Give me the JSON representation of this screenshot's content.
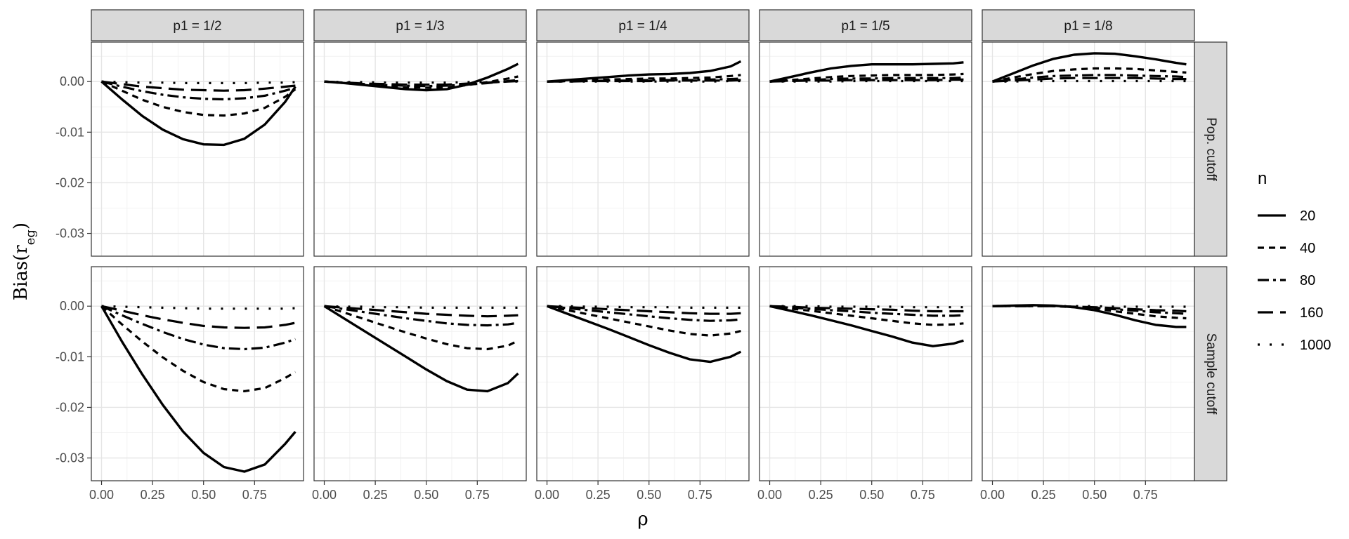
{
  "chart_data": {
    "type": "line",
    "xlabel": "ρ",
    "ylabel": "Bias(r",
    "ylabel_sub": "eg",
    "ylabel_close": ")",
    "x_ticks": [
      0.0,
      0.25,
      0.5,
      0.75
    ],
    "x_tick_labels": [
      "0.00",
      "0.25",
      "0.50",
      "0.75"
    ],
    "xlim": [
      -0.05,
      0.99
    ],
    "y_ticks": [
      0.0,
      -0.01,
      -0.02,
      -0.03
    ],
    "y_tick_labels": [
      "0.00",
      "-0.01",
      "-0.02",
      "-0.03"
    ],
    "ylim": [
      -0.0345,
      0.0078
    ],
    "grid": true,
    "legend": {
      "title": "n",
      "position": "right",
      "entries": [
        "20",
        "40",
        "80",
        "160",
        "1000"
      ]
    },
    "columns": [
      "p1 = 1/2",
      "p1 = 1/3",
      "p1 = 1/4",
      "p1 = 1/5",
      "p1 = 1/8"
    ],
    "rows": [
      "Pop. cutoff",
      "Sample cutoff"
    ],
    "x": [
      0.0,
      0.1,
      0.2,
      0.3,
      0.4,
      0.5,
      0.6,
      0.7,
      0.8,
      0.9,
      0.95
    ],
    "panels": [
      [
        {
          "series": [
            {
              "n": "20",
              "values": [
                0.0,
                -0.0035,
                -0.0068,
                -0.0095,
                -0.0114,
                -0.0124,
                -0.0125,
                -0.0113,
                -0.0085,
                -0.004,
                -0.001
              ]
            },
            {
              "n": "40",
              "values": [
                0.0,
                -0.0018,
                -0.0036,
                -0.005,
                -0.006,
                -0.0066,
                -0.0067,
                -0.0063,
                -0.0052,
                -0.003,
                -0.0015
              ]
            },
            {
              "n": "80",
              "values": [
                0.0,
                -0.001,
                -0.0019,
                -0.0026,
                -0.0031,
                -0.0034,
                -0.0035,
                -0.0033,
                -0.0028,
                -0.0018,
                -0.0012
              ]
            },
            {
              "n": "160",
              "values": [
                0.0,
                -0.0005,
                -0.001,
                -0.0013,
                -0.0016,
                -0.0017,
                -0.0018,
                -0.0017,
                -0.0014,
                -0.001,
                -0.0008
              ]
            },
            {
              "n": "1000",
              "values": [
                0.0,
                -0.0001,
                -0.0002,
                -0.0002,
                -0.0003,
                -0.0003,
                -0.0003,
                -0.0003,
                -0.0002,
                -0.0002,
                -0.0001
              ]
            }
          ]
        },
        {
          "series": [
            {
              "n": "20",
              "values": [
                0.0,
                -0.0003,
                -0.0007,
                -0.0011,
                -0.0015,
                -0.0017,
                -0.0015,
                -0.0006,
                0.0008,
                0.0025,
                0.0035
              ]
            },
            {
              "n": "40",
              "values": [
                0.0,
                -0.0003,
                -0.0006,
                -0.0009,
                -0.0011,
                -0.0012,
                -0.0011,
                -0.0007,
                -0.0001,
                0.0006,
                0.001
              ]
            },
            {
              "n": "80",
              "values": [
                0.0,
                -0.0002,
                -0.0005,
                -0.0007,
                -0.0008,
                -0.0009,
                -0.0008,
                -0.0006,
                -0.0003,
                0.0001,
                0.0003
              ]
            },
            {
              "n": "160",
              "values": [
                0.0,
                -0.0002,
                -0.0004,
                -0.0005,
                -0.0006,
                -0.0006,
                -0.0006,
                -0.0004,
                -0.0002,
                0.0,
                0.0001
              ]
            },
            {
              "n": "1000",
              "values": [
                0.0,
                -0.0001,
                -0.0001,
                -0.0002,
                -0.0002,
                -0.0002,
                -0.0002,
                -0.0001,
                -0.0001,
                0.0,
                0.0
              ]
            }
          ]
        },
        {
          "series": [
            {
              "n": "20",
              "values": [
                0.0,
                0.0003,
                0.0006,
                0.0009,
                0.0012,
                0.0014,
                0.0015,
                0.0017,
                0.0021,
                0.003,
                0.004
              ]
            },
            {
              "n": "40",
              "values": [
                0.0,
                0.0001,
                0.0003,
                0.0004,
                0.0005,
                0.0006,
                0.0006,
                0.0007,
                0.0008,
                0.0011,
                0.0013
              ]
            },
            {
              "n": "80",
              "values": [
                0.0,
                0.0001,
                0.0001,
                0.0002,
                0.0002,
                0.0003,
                0.0003,
                0.0003,
                0.0004,
                0.0005,
                0.0006
              ]
            },
            {
              "n": "160",
              "values": [
                0.0,
                0.0,
                0.0001,
                0.0001,
                0.0001,
                0.0001,
                0.0002,
                0.0002,
                0.0002,
                0.0002,
                0.0003
              ]
            },
            {
              "n": "1000",
              "values": [
                0.0,
                0.0,
                0.0,
                0.0,
                0.0,
                0.0,
                0.0,
                0.0,
                0.0,
                0.0001,
                0.0001
              ]
            }
          ]
        },
        {
          "series": [
            {
              "n": "20",
              "values": [
                0.0,
                0.0009,
                0.0018,
                0.0026,
                0.0031,
                0.0034,
                0.0034,
                0.0034,
                0.0035,
                0.0036,
                0.0038
              ]
            },
            {
              "n": "40",
              "values": [
                0.0,
                0.0003,
                0.0006,
                0.0009,
                0.0011,
                0.0012,
                0.0013,
                0.0013,
                0.0013,
                0.0014,
                0.0015
              ]
            },
            {
              "n": "80",
              "values": [
                0.0,
                0.0002,
                0.0003,
                0.0005,
                0.0006,
                0.0006,
                0.0007,
                0.0007,
                0.0007,
                0.0007,
                0.0008
              ]
            },
            {
              "n": "160",
              "values": [
                0.0,
                0.0001,
                0.0002,
                0.0002,
                0.0003,
                0.0003,
                0.0003,
                0.0003,
                0.0003,
                0.0004,
                0.0004
              ]
            },
            {
              "n": "1000",
              "values": [
                0.0,
                0.0,
                0.0,
                0.0,
                0.0001,
                0.0001,
                0.0001,
                0.0001,
                0.0001,
                0.0001,
                0.0001
              ]
            }
          ]
        },
        {
          "series": [
            {
              "n": "20",
              "values": [
                0.0,
                0.0016,
                0.0032,
                0.0045,
                0.0053,
                0.0056,
                0.0055,
                0.005,
                0.0044,
                0.0037,
                0.0034
              ]
            },
            {
              "n": "40",
              "values": [
                0.0,
                0.0008,
                0.0015,
                0.0021,
                0.0024,
                0.0026,
                0.0026,
                0.0025,
                0.0022,
                0.0019,
                0.0018
              ]
            },
            {
              "n": "80",
              "values": [
                0.0,
                0.0004,
                0.0008,
                0.0011,
                0.0012,
                0.0013,
                0.0013,
                0.0012,
                0.0011,
                0.001,
                0.0009
              ]
            },
            {
              "n": "160",
              "values": [
                0.0,
                0.0002,
                0.0004,
                0.0006,
                0.0007,
                0.0007,
                0.0007,
                0.0007,
                0.0006,
                0.0005,
                0.0005
              ]
            },
            {
              "n": "1000",
              "values": [
                0.0,
                0.0,
                0.0001,
                0.0001,
                0.0001,
                0.0001,
                0.0001,
                0.0001,
                0.0001,
                0.0001,
                0.0001
              ]
            }
          ]
        }
      ],
      [
        {
          "series": [
            {
              "n": "20",
              "values": [
                0.0,
                -0.007,
                -0.0135,
                -0.0195,
                -0.0248,
                -0.029,
                -0.0318,
                -0.0327,
                -0.0313,
                -0.0272,
                -0.0248
              ]
            },
            {
              "n": "40",
              "values": [
                0.0,
                -0.0036,
                -0.007,
                -0.0101,
                -0.0128,
                -0.015,
                -0.0164,
                -0.0168,
                -0.0162,
                -0.0142,
                -0.013
              ]
            },
            {
              "n": "80",
              "values": [
                0.0,
                -0.0018,
                -0.0035,
                -0.0051,
                -0.0065,
                -0.0076,
                -0.0083,
                -0.0085,
                -0.0082,
                -0.0072,
                -0.0065
              ]
            },
            {
              "n": "160",
              "values": [
                0.0,
                -0.0009,
                -0.0018,
                -0.0026,
                -0.0033,
                -0.0039,
                -0.0042,
                -0.0043,
                -0.0042,
                -0.0037,
                -0.0033
              ]
            },
            {
              "n": "1000",
              "values": [
                0.0,
                -0.0001,
                -0.0002,
                -0.0003,
                -0.0004,
                -0.0005,
                -0.0005,
                -0.0005,
                -0.0005,
                -0.0005,
                -0.0004
              ]
            }
          ]
        },
        {
          "series": [
            {
              "n": "20",
              "values": [
                0.0,
                -0.0025,
                -0.005,
                -0.0075,
                -0.01,
                -0.0125,
                -0.0148,
                -0.0165,
                -0.0168,
                -0.0152,
                -0.0133
              ]
            },
            {
              "n": "40",
              "values": [
                0.0,
                -0.0013,
                -0.0026,
                -0.0039,
                -0.0052,
                -0.0064,
                -0.0075,
                -0.0083,
                -0.0085,
                -0.0078,
                -0.0068
              ]
            },
            {
              "n": "80",
              "values": [
                0.0,
                -0.0006,
                -0.0012,
                -0.0018,
                -0.0024,
                -0.0029,
                -0.0034,
                -0.0037,
                -0.0038,
                -0.0036,
                -0.0033
              ]
            },
            {
              "n": "160",
              "values": [
                0.0,
                -0.0003,
                -0.0006,
                -0.0009,
                -0.0012,
                -0.0015,
                -0.0017,
                -0.0019,
                -0.002,
                -0.0019,
                -0.0018
              ]
            },
            {
              "n": "1000",
              "values": [
                0.0,
                -0.0001,
                -0.0001,
                -0.0002,
                -0.0002,
                -0.0003,
                -0.0003,
                -0.0003,
                -0.0003,
                -0.0003,
                -0.0003
              ]
            }
          ]
        },
        {
          "series": [
            {
              "n": "20",
              "values": [
                0.0,
                -0.0015,
                -0.003,
                -0.0045,
                -0.0061,
                -0.0077,
                -0.0092,
                -0.0105,
                -0.011,
                -0.01,
                -0.009
              ]
            },
            {
              "n": "40",
              "values": [
                0.0,
                -0.0008,
                -0.0016,
                -0.0024,
                -0.0032,
                -0.004,
                -0.0048,
                -0.0055,
                -0.0058,
                -0.0054,
                -0.0049
              ]
            },
            {
              "n": "80",
              "values": [
                0.0,
                -0.0004,
                -0.0008,
                -0.0012,
                -0.0016,
                -0.002,
                -0.0024,
                -0.0027,
                -0.0029,
                -0.0028,
                -0.0026
              ]
            },
            {
              "n": "160",
              "values": [
                0.0,
                -0.0002,
                -0.0004,
                -0.0006,
                -0.0008,
                -0.001,
                -0.0012,
                -0.0014,
                -0.0015,
                -0.0015,
                -0.0014
              ]
            },
            {
              "n": "1000",
              "values": [
                0.0,
                0.0,
                -0.0001,
                -0.0001,
                -0.0002,
                -0.0002,
                -0.0002,
                -0.0003,
                -0.0003,
                -0.0003,
                -0.0003
              ]
            }
          ]
        },
        {
          "series": [
            {
              "n": "20",
              "values": [
                0.0,
                -0.0009,
                -0.0018,
                -0.0028,
                -0.0038,
                -0.0049,
                -0.006,
                -0.0072,
                -0.0079,
                -0.0074,
                -0.0068
              ]
            },
            {
              "n": "40",
              "values": [
                0.0,
                -0.0005,
                -0.0009,
                -0.0014,
                -0.0019,
                -0.0024,
                -0.0029,
                -0.0034,
                -0.0037,
                -0.0036,
                -0.0034
              ]
            },
            {
              "n": "80",
              "values": [
                0.0,
                -0.0003,
                -0.0005,
                -0.0008,
                -0.001,
                -0.0013,
                -0.0015,
                -0.0017,
                -0.0019,
                -0.0019,
                -0.0018
              ]
            },
            {
              "n": "160",
              "values": [
                0.0,
                -0.0001,
                -0.0003,
                -0.0004,
                -0.0005,
                -0.0006,
                -0.0007,
                -0.0009,
                -0.001,
                -0.001,
                -0.001
              ]
            },
            {
              "n": "1000",
              "values": [
                0.0,
                0.0,
                0.0,
                -0.0001,
                -0.0001,
                -0.0001,
                -0.0001,
                -0.0002,
                -0.0002,
                -0.0002,
                -0.0002
              ]
            }
          ]
        },
        {
          "series": [
            {
              "n": "20",
              "values": [
                0.0,
                0.0001,
                0.0002,
                0.0001,
                -0.0002,
                -0.0008,
                -0.0017,
                -0.0028,
                -0.0037,
                -0.0041,
                -0.0041
              ]
            },
            {
              "n": "40",
              "values": [
                0.0,
                0.0001,
                0.0001,
                0.0,
                -0.0002,
                -0.0005,
                -0.001,
                -0.0015,
                -0.002,
                -0.0023,
                -0.0024
              ]
            },
            {
              "n": "80",
              "values": [
                0.0,
                0.0,
                0.0,
                0.0,
                -0.0001,
                -0.0003,
                -0.0006,
                -0.0009,
                -0.0012,
                -0.0014,
                -0.0015
              ]
            },
            {
              "n": "160",
              "values": [
                0.0,
                0.0,
                0.0,
                0.0,
                -0.0001,
                -0.0002,
                -0.0004,
                -0.0006,
                -0.0008,
                -0.0009,
                -0.001
              ]
            },
            {
              "n": "1000",
              "values": [
                0.0,
                0.0,
                0.0,
                0.0,
                0.0,
                0.0,
                -0.0001,
                -0.0001,
                -0.0001,
                -0.0001,
                -0.0001
              ]
            }
          ]
        }
      ]
    ]
  }
}
